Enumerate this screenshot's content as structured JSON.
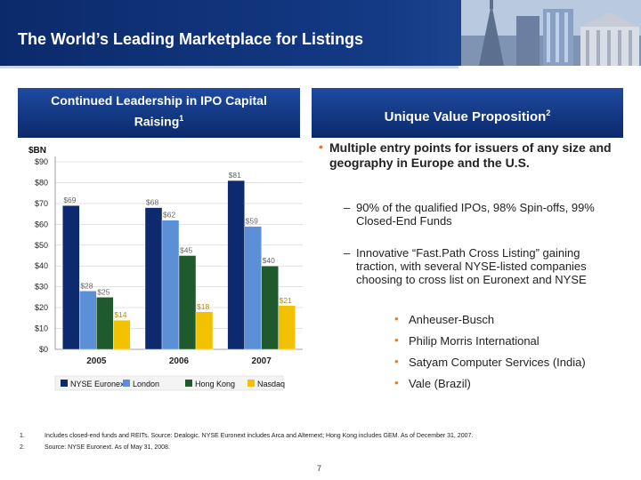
{
  "header": {
    "title": "The World’s Leading Marketplace for Listings"
  },
  "left_box": {
    "line1": "Continued Leadership in IPO Capital",
    "line2": "Raising",
    "sup": "1"
  },
  "right_box": {
    "title": "Unique Value Proposition",
    "sup": "2"
  },
  "bullets": {
    "main": "Multiple entry points for issuers of any size and geography in Europe and the U.S.",
    "sub1": "90% of the qualified IPOs, 98% Spin-offs, 99% Closed-End Funds",
    "sub2": "Innovative “Fast.Path Cross Listing” gaining traction, with several NYSE-listed companies choosing to cross list on Euronext and NYSE",
    "companies": [
      "Anheuser-Busch",
      "Philip Morris International",
      "Satyam Computer Services (India)",
      "Vale (Brazil)"
    ]
  },
  "footnotes": [
    {
      "num": "1.",
      "text": "Includes closed-end funds and REITs. Source: Dealogic. NYSE Euronext includes Arca and Alternext; Hong Kong includes GEM. As of December 31, 2007."
    },
    {
      "num": "2.",
      "text": "Source: NYSE Euronext. As of May 31, 2008."
    }
  ],
  "page_number": "7",
  "colors": {
    "nyse": "#0e2a6e",
    "london": "#5b8fd6",
    "hongkong": "#1f5a2c",
    "nasdaq": "#f2c200",
    "accent": "#e87a1e"
  },
  "chart_data": {
    "type": "bar",
    "title": "",
    "ylabel": "$BN",
    "xlabel": "",
    "ylim": [
      0,
      90
    ],
    "y_ticks": [
      "$0",
      "$10",
      "$20",
      "$30",
      "$40",
      "$50",
      "$60",
      "$70",
      "$80",
      "$90"
    ],
    "y_tick_values": [
      0,
      10,
      20,
      30,
      40,
      50,
      60,
      70,
      80,
      90
    ],
    "categories": [
      "2005",
      "2006",
      "2007"
    ],
    "series": [
      {
        "name": "NYSE Euronext",
        "color": "#0e2a6e",
        "values": [
          69,
          68,
          81
        ],
        "labels": [
          "$69",
          "$68",
          "$81"
        ]
      },
      {
        "name": "London",
        "color": "#5b8fd6",
        "values": [
          28,
          62,
          59
        ],
        "labels": [
          "$28",
          "$62",
          "$59"
        ]
      },
      {
        "name": "Hong Kong",
        "color": "#1f5a2c",
        "values": [
          25,
          45,
          40
        ],
        "labels": [
          "$25",
          "$45",
          "$40"
        ]
      },
      {
        "name": "Nasdaq",
        "color": "#f2c200",
        "values": [
          14,
          18,
          21
        ],
        "labels": [
          "$14",
          "$18",
          "$21"
        ]
      }
    ],
    "legend_position": "bottom"
  }
}
